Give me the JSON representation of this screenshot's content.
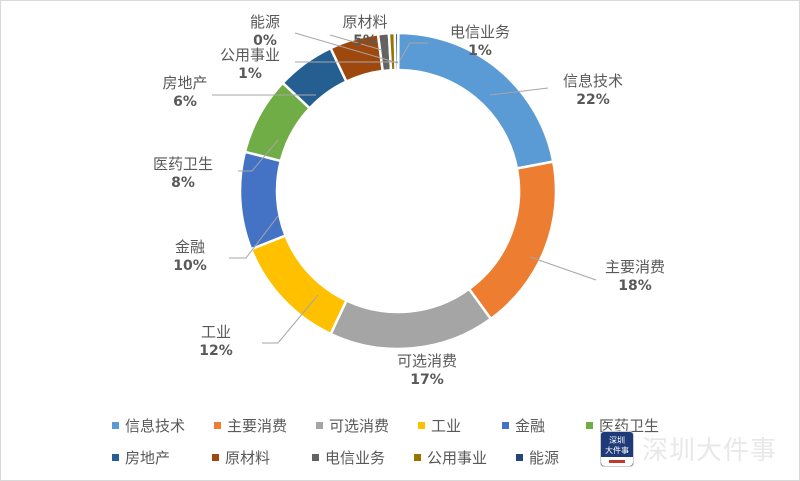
{
  "chart_data": {
    "type": "pie",
    "subtype": "donut",
    "title": "",
    "categories": [
      "信息技术",
      "主要消费",
      "可选消费",
      "工业",
      "金融",
      "医药卫生",
      "房地产",
      "原材料",
      "电信业务",
      "公用事业",
      "能源"
    ],
    "values": [
      22,
      18,
      17,
      12,
      10,
      8,
      6,
      5,
      1,
      1,
      0
    ],
    "value_labels": [
      "22%",
      "18%",
      "17%",
      "12%",
      "10%",
      "8%",
      "6%",
      "5%",
      "1%",
      "1%",
      "0%"
    ],
    "colors": [
      "#5B9BD5",
      "#ED7D31",
      "#A5A5A5",
      "#FFC000",
      "#4472C4",
      "#70AD47",
      "#255E91",
      "#9E480E",
      "#636363",
      "#997300",
      "#264478"
    ],
    "legend_position": "bottom"
  },
  "labels": [
    {
      "name": "信息技术",
      "pct": "22%"
    },
    {
      "name": "主要消费",
      "pct": "18%"
    },
    {
      "name": "可选消费",
      "pct": "17%"
    },
    {
      "name": "工业",
      "pct": "12%"
    },
    {
      "name": "金融",
      "pct": "10%"
    },
    {
      "name": "医药卫生",
      "pct": "8%"
    },
    {
      "name": "房地产",
      "pct": "6%"
    },
    {
      "name": "原材料",
      "pct": "5%"
    },
    {
      "name": "电信业务",
      "pct": "1%"
    },
    {
      "name": "公用事业",
      "pct": "1%"
    },
    {
      "name": "能源",
      "pct": "0%"
    }
  ],
  "legend": {
    "row1": [
      "信息技术",
      "主要消费",
      "可选消费",
      "工业",
      "金融",
      "医药卫生"
    ],
    "row2": [
      "房地产",
      "原材料",
      "电信业务",
      "公用事业",
      "能源"
    ]
  },
  "watermark": {
    "logo_line1": "深圳",
    "logo_line2": "大件事",
    "text": "深圳大件事"
  }
}
